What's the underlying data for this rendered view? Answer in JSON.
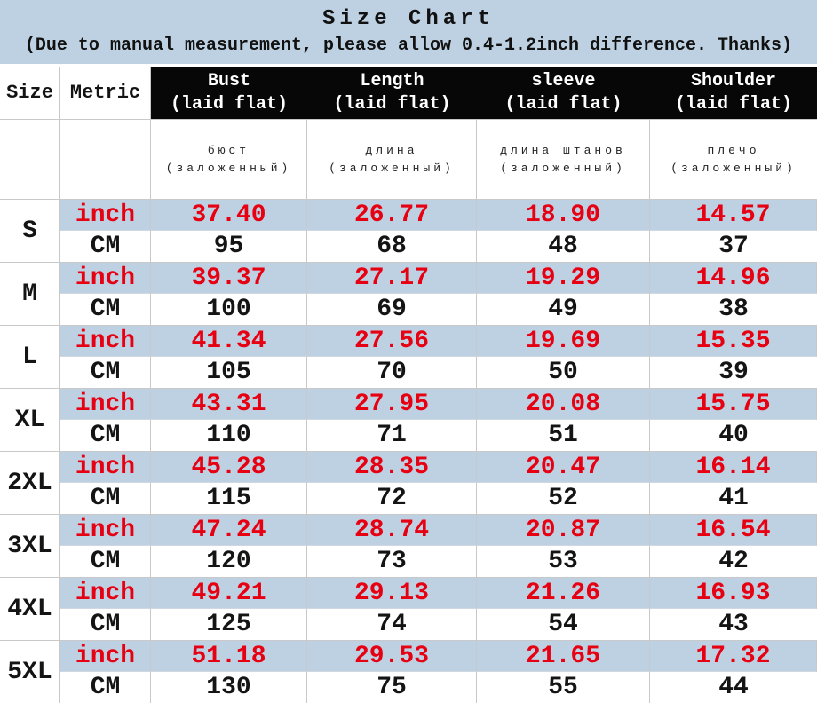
{
  "banner": {
    "bg_color": "#bdd1e2"
  },
  "chart_data": {
    "type": "table",
    "title": "Size Chart",
    "subtitle": "(Due to manual measurement, please allow 0.4-1.2inch difference. Thanks)",
    "corner": {
      "size": "Size",
      "metric": "Metric"
    },
    "columns": [
      {
        "label": "Bust",
        "note": "(laid flat)",
        "ru": "бюст",
        "ru_note": "(заложенный)"
      },
      {
        "label": "Length",
        "note": "(laid flat)",
        "ru": "длина",
        "ru_note": "(заложенный)"
      },
      {
        "label": "sleeve",
        "note": "(laid flat)",
        "ru": "длина штанов",
        "ru_note": "(заложенный)"
      },
      {
        "label": "Shoulder",
        "note": "(laid flat)",
        "ru": "плечо",
        "ru_note": "(заложенный)"
      }
    ],
    "units": {
      "inch": "inch",
      "cm": "CM"
    },
    "rows": [
      {
        "size": "S",
        "inch": [
          "37.40",
          "26.77",
          "18.90",
          "14.57"
        ],
        "cm": [
          "95",
          "68",
          "48",
          "37"
        ]
      },
      {
        "size": "M",
        "inch": [
          "39.37",
          "27.17",
          "19.29",
          "14.96"
        ],
        "cm": [
          "100",
          "69",
          "49",
          "38"
        ]
      },
      {
        "size": "L",
        "inch": [
          "41.34",
          "27.56",
          "19.69",
          "15.35"
        ],
        "cm": [
          "105",
          "70",
          "50",
          "39"
        ]
      },
      {
        "size": "XL",
        "inch": [
          "43.31",
          "27.95",
          "20.08",
          "15.75"
        ],
        "cm": [
          "110",
          "71",
          "51",
          "40"
        ]
      },
      {
        "size": "2XL",
        "inch": [
          "45.28",
          "28.35",
          "20.47",
          "16.14"
        ],
        "cm": [
          "115",
          "72",
          "52",
          "41"
        ]
      },
      {
        "size": "3XL",
        "inch": [
          "47.24",
          "28.74",
          "20.87",
          "16.54"
        ],
        "cm": [
          "120",
          "73",
          "53",
          "42"
        ]
      },
      {
        "size": "4XL",
        "inch": [
          "49.21",
          "29.13",
          "21.26",
          "16.93"
        ],
        "cm": [
          "125",
          "74",
          "54",
          "43"
        ]
      },
      {
        "size": "5XL",
        "inch": [
          "51.18",
          "29.53",
          "21.65",
          "17.32"
        ],
        "cm": [
          "130",
          "75",
          "55",
          "44"
        ]
      }
    ],
    "colors": {
      "band_blue": "#bdd1e2",
      "inch_red": "#e60012",
      "header_black": "#070707",
      "border_gray": "#c9c9c9"
    }
  }
}
